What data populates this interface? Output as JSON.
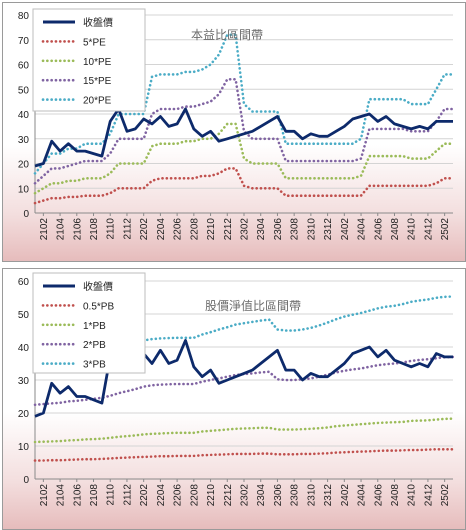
{
  "chart_data": [
    {
      "type": "line",
      "title": "本益比區間帶",
      "ylim": [
        0,
        80
      ],
      "yticks": [
        0,
        10,
        20,
        30,
        40,
        50,
        60,
        70,
        80
      ],
      "tick_labels": [
        "2102",
        "2104",
        "2106",
        "2108",
        "2110",
        "2112",
        "2202",
        "2204",
        "2206",
        "2208",
        "2210",
        "2212",
        "2302",
        "2304",
        "2306",
        "2308",
        "2310",
        "2312",
        "2402",
        "2404",
        "2406",
        "2408",
        "2410",
        "2412",
        "2502"
      ],
      "x": [
        "2101",
        "2102",
        "2103",
        "2104",
        "2105",
        "2106",
        "2107",
        "2108",
        "2109",
        "2110",
        "2111",
        "2112",
        "2201",
        "2202",
        "2203",
        "2204",
        "2205",
        "2206",
        "2207",
        "2208",
        "2209",
        "2210",
        "2211",
        "2212",
        "2301",
        "2302",
        "2303",
        "2304",
        "2305",
        "2306",
        "2307",
        "2308",
        "2309",
        "2310",
        "2311",
        "2312",
        "2401",
        "2402",
        "2403",
        "2404",
        "2405",
        "2406",
        "2407",
        "2408",
        "2409",
        "2410",
        "2411",
        "2412",
        "2501",
        "2502",
        "2503"
      ],
      "grid": true,
      "legend_position": "top-left",
      "series": [
        {
          "name": "收盤價",
          "style": "solid",
          "color": "#0d2a6b",
          "values": [
            19,
            20,
            29,
            25,
            28,
            25,
            25,
            24,
            23,
            37,
            42,
            33,
            34,
            38,
            36,
            39,
            35,
            36,
            42,
            34,
            31,
            33,
            29,
            30,
            31,
            32,
            33,
            35,
            37,
            39,
            33,
            33,
            30,
            32,
            31,
            31,
            33,
            35,
            38,
            39,
            40,
            37,
            39,
            36,
            35,
            34,
            35,
            34,
            37,
            37,
            37
          ]
        },
        {
          "name": "5*PE",
          "style": "dotted",
          "color": "#c0504d",
          "values": [
            4,
            5,
            6,
            6,
            6.5,
            6.5,
            7,
            7,
            7,
            8,
            10,
            10,
            10,
            10,
            13,
            14,
            14,
            14,
            14,
            14,
            15,
            15,
            16,
            18,
            18,
            11,
            10,
            10,
            10,
            10,
            7,
            7,
            7,
            7,
            7,
            7,
            7,
            7,
            7,
            7,
            11,
            11,
            11,
            11,
            11,
            11,
            11,
            11,
            12,
            14,
            14
          ]
        },
        {
          "name": "10*PE",
          "style": "dotted",
          "color": "#9bbb59",
          "values": [
            8,
            10,
            12,
            12,
            13,
            13,
            14,
            14,
            14,
            16,
            20,
            20,
            20,
            20,
            27,
            28,
            28,
            28,
            29,
            29,
            30,
            30,
            32,
            36,
            36,
            22,
            20,
            20,
            20,
            20,
            14,
            14,
            14,
            14,
            14,
            14,
            14,
            14,
            14,
            15,
            23,
            23,
            23,
            23,
            23,
            22,
            22,
            22,
            25,
            28,
            28
          ]
        },
        {
          "name": "15*PE",
          "style": "dotted",
          "color": "#8064a2",
          "values": [
            12,
            15,
            18,
            18,
            19,
            20,
            21,
            21,
            21,
            24,
            30,
            30,
            30,
            30,
            40,
            42,
            42,
            42,
            43,
            43,
            44,
            45,
            48,
            54,
            54,
            33,
            30,
            30,
            30,
            30,
            21,
            21,
            21,
            21,
            21,
            21,
            21,
            21,
            21,
            22,
            34,
            34,
            34,
            34,
            34,
            33,
            33,
            33,
            37,
            42,
            42
          ]
        },
        {
          "name": "20*PE",
          "style": "dotted",
          "color": "#4bacc6",
          "values": [
            16,
            20,
            24,
            24,
            26,
            26,
            28,
            28,
            28,
            32,
            40,
            40,
            40,
            40,
            55,
            56,
            56,
            56,
            57,
            57,
            58,
            60,
            64,
            72,
            72,
            44,
            41,
            41,
            41,
            41,
            28,
            28,
            28,
            28,
            28,
            28,
            28,
            28,
            28,
            30,
            46,
            46,
            46,
            46,
            46,
            44,
            44,
            44,
            50,
            56,
            56
          ]
        }
      ]
    },
    {
      "type": "line",
      "title": "股價淨值比區間帶",
      "ylim": [
        0,
        60
      ],
      "yticks": [
        0,
        10,
        20,
        30,
        40,
        50,
        60
      ],
      "tick_labels": [
        "2102",
        "2104",
        "2106",
        "2108",
        "2110",
        "2112",
        "2202",
        "2204",
        "2206",
        "2208",
        "2210",
        "2212",
        "2302",
        "2304",
        "2306",
        "2308",
        "2310",
        "2312",
        "2402",
        "2404",
        "2406",
        "2408",
        "2410",
        "2412",
        "2502"
      ],
      "x": [
        "2101",
        "2102",
        "2103",
        "2104",
        "2105",
        "2106",
        "2107",
        "2108",
        "2109",
        "2110",
        "2111",
        "2112",
        "2201",
        "2202",
        "2203",
        "2204",
        "2205",
        "2206",
        "2207",
        "2208",
        "2209",
        "2210",
        "2211",
        "2212",
        "2301",
        "2302",
        "2303",
        "2304",
        "2305",
        "2306",
        "2307",
        "2308",
        "2309",
        "2310",
        "2311",
        "2312",
        "2401",
        "2402",
        "2403",
        "2404",
        "2405",
        "2406",
        "2407",
        "2408",
        "2409",
        "2410",
        "2411",
        "2412",
        "2501",
        "2502",
        "2503"
      ],
      "grid": true,
      "legend_position": "top-left",
      "series": [
        {
          "name": "收盤價",
          "style": "solid",
          "color": "#0d2a6b",
          "values": [
            19,
            20,
            29,
            26,
            28,
            25,
            25,
            24,
            23,
            37,
            42,
            33,
            34,
            38,
            35,
            39,
            35,
            36,
            42,
            34,
            31,
            33,
            29,
            30,
            31,
            32,
            33,
            35,
            37,
            39,
            33,
            33,
            30,
            32,
            31,
            31,
            33,
            35,
            38,
            39,
            40,
            37,
            39,
            36,
            35,
            34,
            35,
            34,
            38,
            37,
            37
          ]
        },
        {
          "name": "0.5*PB",
          "style": "dotted",
          "color": "#c0504d",
          "values": [
            5.6,
            5.6,
            5.7,
            5.7,
            5.8,
            5.9,
            6,
            6,
            6.1,
            6.2,
            6.4,
            6.5,
            6.6,
            6.7,
            6.8,
            6.9,
            6.9,
            7,
            7,
            7,
            7.2,
            7.3,
            7.4,
            7.5,
            7.6,
            7.6,
            7.6,
            7.7,
            7.7,
            7.5,
            7.5,
            7.5,
            7.6,
            7.6,
            7.7,
            7.8,
            8,
            8.1,
            8.2,
            8.3,
            8.4,
            8.5,
            8.6,
            8.6,
            8.7,
            8.8,
            8.8,
            8.9,
            9,
            9,
            9
          ]
        },
        {
          "name": "1*PB",
          "style": "dotted",
          "color": "#9bbb59",
          "values": [
            11.2,
            11.3,
            11.4,
            11.5,
            11.7,
            11.8,
            12,
            12.1,
            12.2,
            12.5,
            12.8,
            13,
            13.2,
            13.5,
            13.7,
            13.8,
            13.9,
            14,
            14,
            14,
            14.4,
            14.6,
            14.8,
            15,
            15.2,
            15.3,
            15.4,
            15.5,
            15.5,
            15,
            15,
            15,
            15.1,
            15.2,
            15.4,
            15.6,
            16,
            16.2,
            16.4,
            16.6,
            16.8,
            17,
            17.1,
            17.2,
            17.3,
            17.6,
            17.7,
            17.8,
            18,
            18.2,
            18.3
          ]
        },
        {
          "name": "2*PB",
          "style": "dotted",
          "color": "#8064a2",
          "values": [
            22.5,
            22.7,
            22.9,
            23.1,
            23.5,
            23.7,
            24,
            24.3,
            24.6,
            25.2,
            26,
            26.6,
            27.2,
            28,
            28.4,
            28.6,
            28.7,
            28.8,
            28.8,
            28.8,
            29.5,
            30,
            30.5,
            31,
            31.5,
            31.8,
            32,
            32.3,
            32.5,
            30.2,
            30,
            30,
            30.2,
            30.5,
            31,
            31.6,
            32.3,
            32.8,
            33.2,
            33.5,
            34,
            34.5,
            34.8,
            35,
            35.3,
            35.8,
            36.1,
            36.3,
            36.6,
            36.9,
            37
          ]
        },
        {
          "name": "3*PB",
          "style": "dotted",
          "color": "#4bacc6",
          "values": [
            34,
            34.2,
            34.5,
            35,
            35.4,
            35.8,
            36.3,
            36.8,
            37.3,
            38,
            39.3,
            40.3,
            41.1,
            42,
            42.4,
            42.6,
            42.7,
            42.8,
            42.8,
            42.8,
            43.8,
            44.5,
            45.3,
            46,
            46.8,
            47.2,
            47.6,
            48,
            48.3,
            45.3,
            45,
            45,
            45.3,
            45.8,
            46.5,
            47.4,
            48.4,
            49.2,
            49.8,
            50.3,
            51,
            51.7,
            52.2,
            52.5,
            53,
            53.7,
            54.1,
            54.4,
            54.9,
            55.2,
            55.3
          ]
        }
      ]
    }
  ]
}
